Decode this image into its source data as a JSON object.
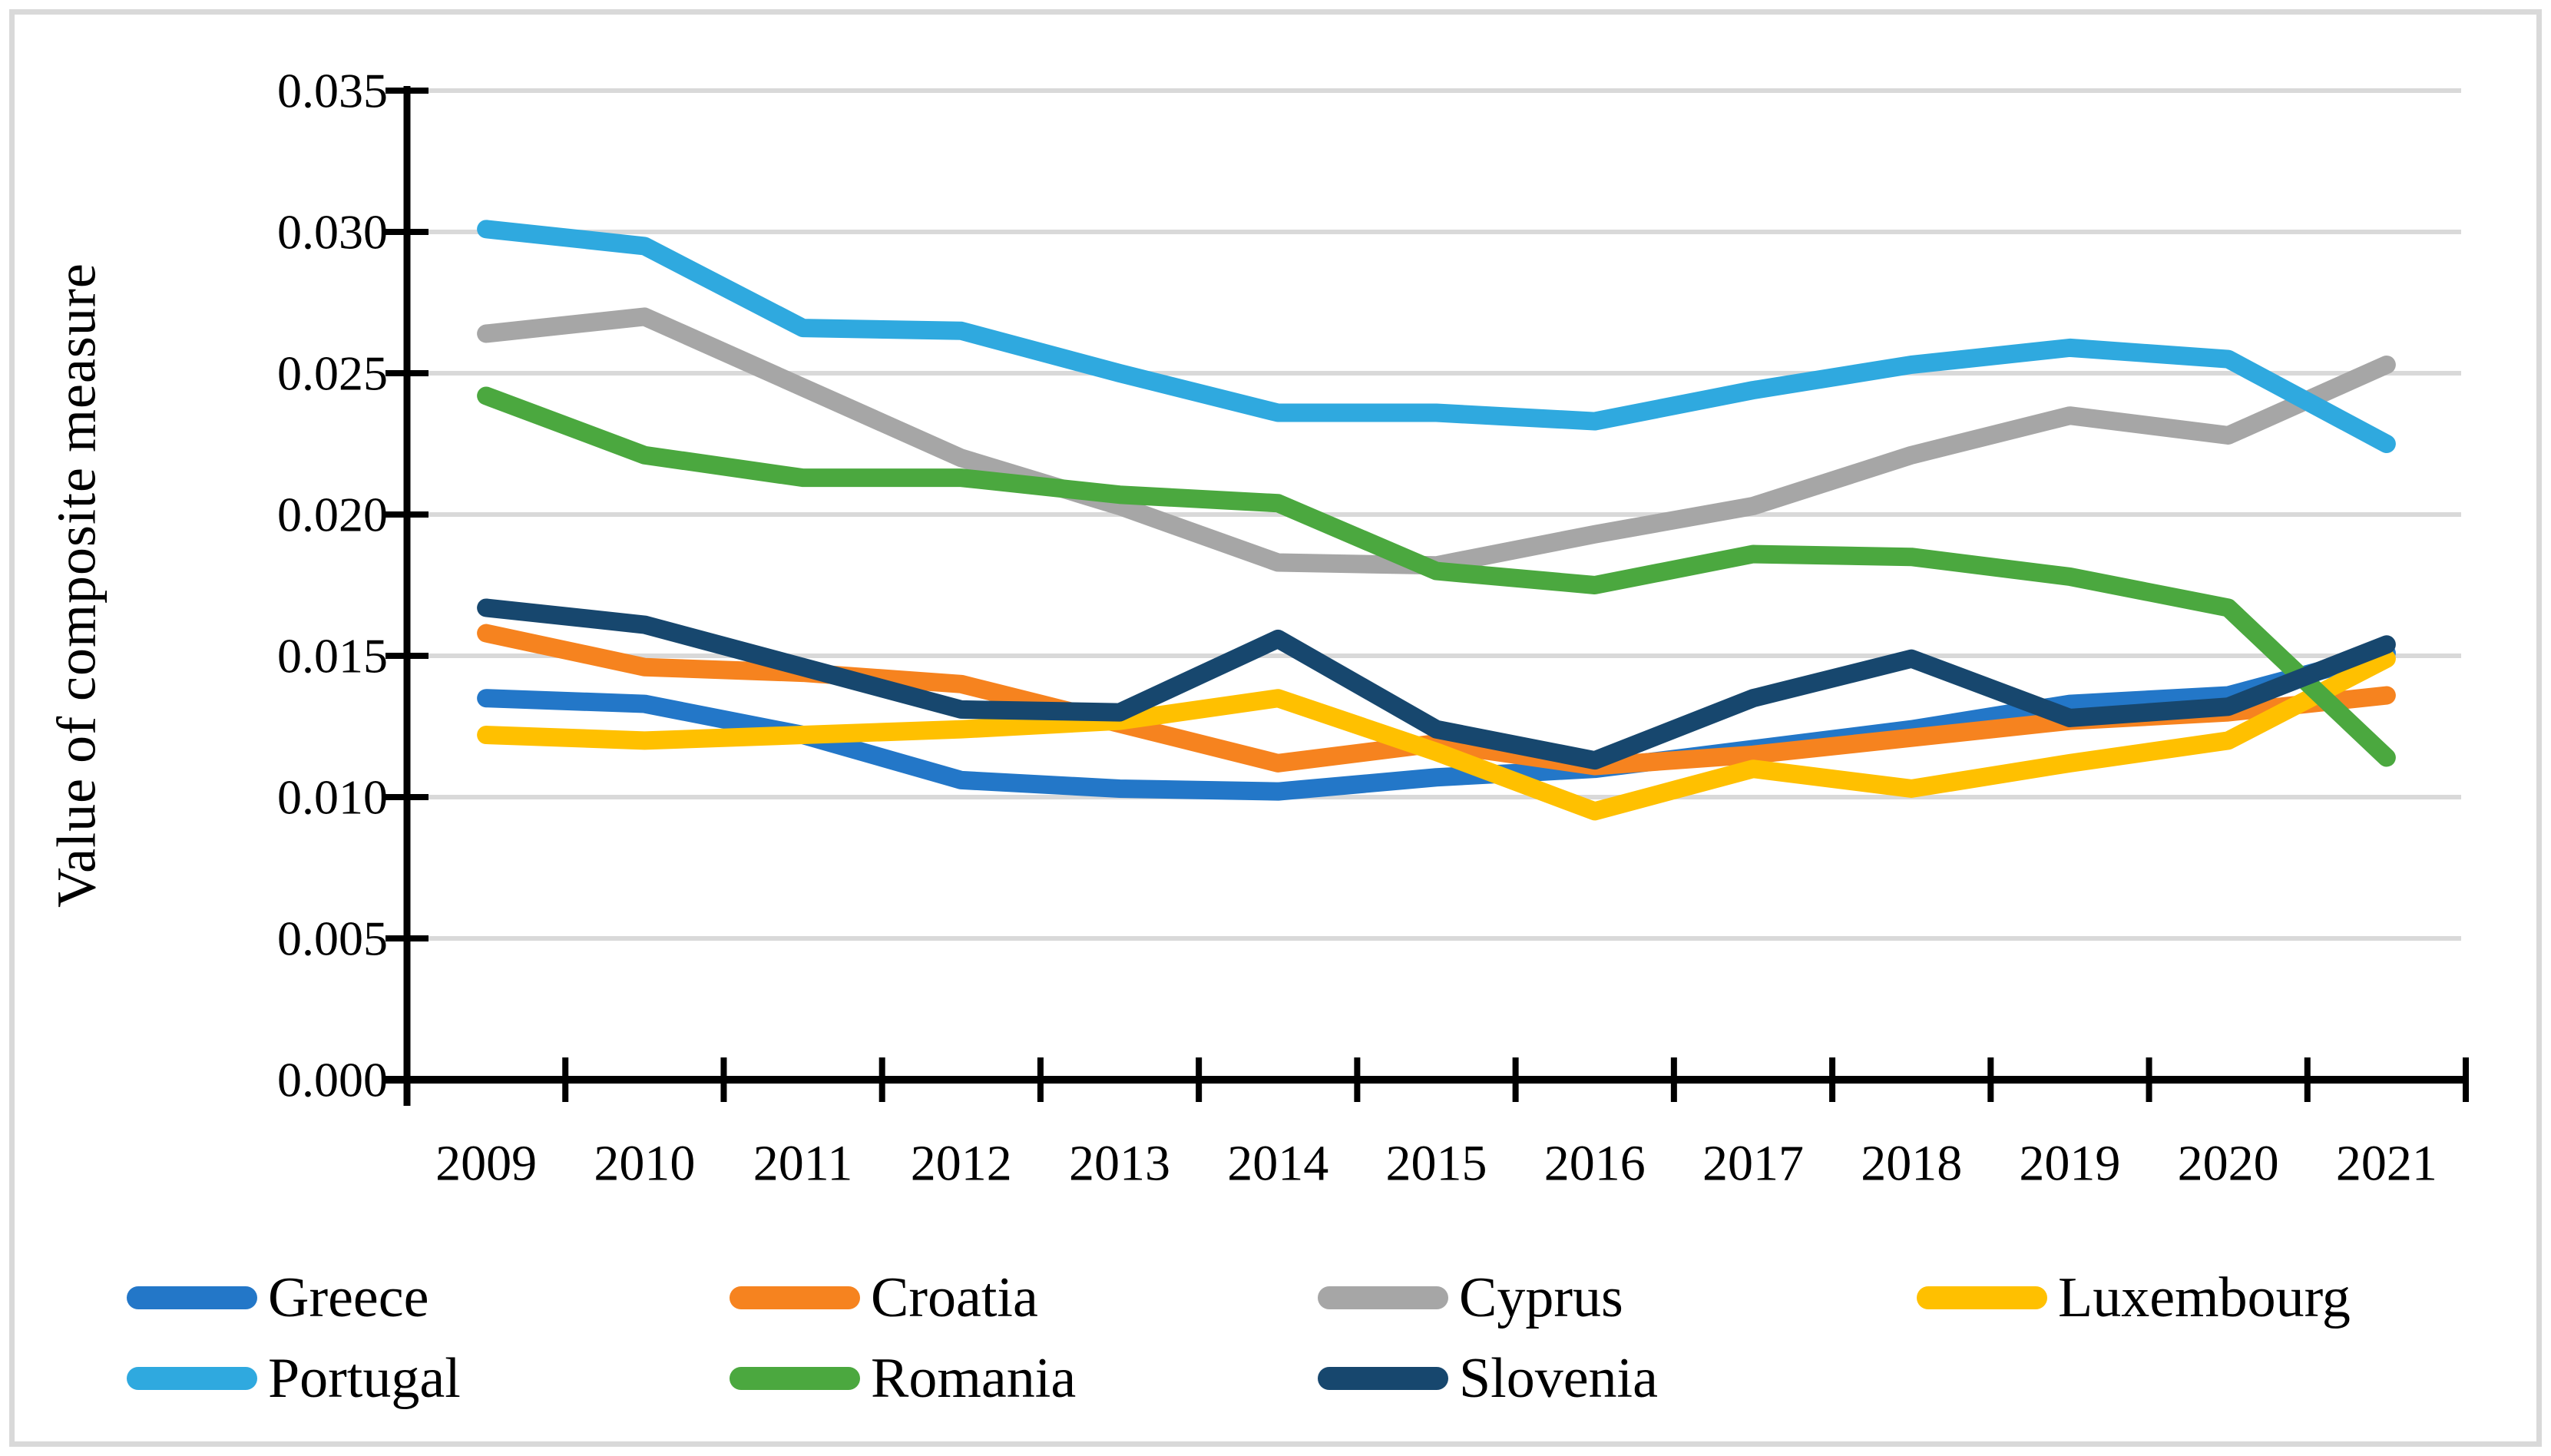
{
  "figure": {
    "background": "#FFFFFF",
    "border_color": "#D9D9D9",
    "gridline_color": "#D9D9D9",
    "axis_color": "#000000"
  },
  "chart_data": {
    "type": "line",
    "title": "",
    "xlabel": "",
    "ylabel": "Value of composite measure",
    "x": [
      2009,
      2010,
      2011,
      2012,
      2013,
      2014,
      2015,
      2016,
      2017,
      2018,
      2019,
      2020,
      2021
    ],
    "x_tick_labels": [
      "2009",
      "2010",
      "2011",
      "2012",
      "2013",
      "2014",
      "2015",
      "2016",
      "2017",
      "2018",
      "2019",
      "2020",
      "2021"
    ],
    "ylim": [
      0,
      0.035
    ],
    "ytick_step": 0.005,
    "ytick_labels": [
      "0.000",
      "0.005",
      "0.010",
      "0.015",
      "0.020",
      "0.025",
      "0.030",
      "0.035"
    ],
    "grid": "horizontal",
    "legend_position": "bottom",
    "series": [
      {
        "name": "Greece",
        "color": "#2377C8",
        "values": [
          0.0135,
          0.0133,
          0.0122,
          0.0106,
          0.0103,
          0.0102,
          0.0107,
          0.011,
          0.0117,
          0.0124,
          0.0133,
          0.0136,
          0.0151
        ]
      },
      {
        "name": "Croatia",
        "color": "#F6831F",
        "values": [
          0.0158,
          0.0146,
          0.0144,
          0.014,
          0.0126,
          0.0112,
          0.0119,
          0.0111,
          0.0115,
          0.0121,
          0.0127,
          0.013,
          0.0136
        ]
      },
      {
        "name": "Cyprus",
        "color": "#A6A6A6",
        "values": [
          0.0264,
          0.027,
          0.0245,
          0.022,
          0.0203,
          0.0183,
          0.0182,
          0.0193,
          0.0203,
          0.0221,
          0.0235,
          0.0228,
          0.0253
        ]
      },
      {
        "name": "Luxembourg",
        "color": "#FFC000",
        "values": [
          0.0122,
          0.012,
          0.0122,
          0.0124,
          0.0127,
          0.0135,
          0.0116,
          0.0095,
          0.011,
          0.0103,
          0.0112,
          0.012,
          0.0149
        ]
      },
      {
        "name": "Portugal",
        "color": "#2FA9DF",
        "values": [
          0.0301,
          0.0295,
          0.0266,
          0.0265,
          0.025,
          0.0236,
          0.0236,
          0.0233,
          0.0244,
          0.0253,
          0.0259,
          0.0255,
          0.0225
        ]
      },
      {
        "name": "Romania",
        "color": "#4BA83F",
        "values": [
          0.0242,
          0.0221,
          0.0213,
          0.0213,
          0.0207,
          0.0204,
          0.018,
          0.0175,
          0.0186,
          0.0185,
          0.0178,
          0.0167,
          0.0114
        ]
      },
      {
        "name": "Slovenia",
        "color": "#17476E",
        "values": [
          0.0167,
          0.0161,
          0.0146,
          0.0131,
          0.013,
          0.0156,
          0.0124,
          0.0113,
          0.0135,
          0.0149,
          0.0128,
          0.0132,
          0.0154
        ]
      }
    ],
    "legend_rows": [
      [
        "Greece",
        "Croatia",
        "Cyprus",
        "Luxembourg"
      ],
      [
        "Portugal",
        "Romania",
        "Slovenia"
      ]
    ]
  }
}
